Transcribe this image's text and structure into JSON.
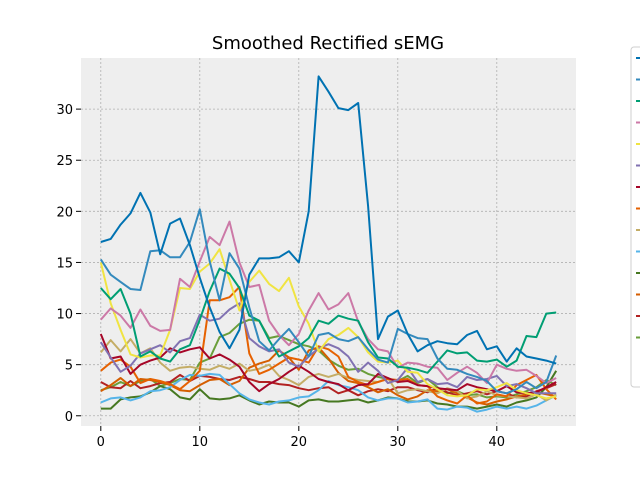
{
  "chart_data": {
    "type": "line",
    "title": "Smoothed Rectified sEMG",
    "xlabel": "",
    "ylabel": "",
    "xlim": [
      -2,
      48
    ],
    "ylim": [
      -1,
      35
    ],
    "xticks": [
      0,
      10,
      20,
      30,
      40
    ],
    "yticks": [
      0,
      5,
      10,
      15,
      20,
      25,
      30
    ],
    "grid": true,
    "legend_position": "right (clipped)",
    "series": [
      {
        "color": "#0072B2",
        "values": [
          17,
          17.3,
          18.7,
          19.8,
          21.8,
          19.9,
          15.8,
          18.8,
          19.3,
          16.7,
          13.5,
          10.6,
          8.2,
          6.6,
          8.4,
          13.8,
          15.4,
          15.4,
          15.5,
          16.1,
          15.0,
          20.0,
          33.2,
          31.7,
          30.1,
          29.9,
          30.6,
          20.5,
          7.5,
          9.7,
          10.3,
          8.0,
          6.3,
          6.9,
          7.3,
          7.1,
          7.0,
          7.9,
          8.3,
          6.5,
          6.8,
          5.3,
          6.6,
          5.8,
          5.6,
          5.4,
          5.1
        ]
      },
      {
        "color": "#348ABD",
        "values": [
          15.3,
          13.8,
          13.1,
          12.4,
          12.3,
          16.1,
          16.2,
          15.5,
          15.5,
          17.0,
          20.2,
          15.1,
          11.3,
          15.9,
          14.4,
          10.6,
          7.3,
          6.4,
          7.5,
          8.5,
          7.2,
          5.8,
          7.9,
          8.1,
          7.5,
          7.3,
          7.7,
          6.5,
          5.5,
          5.2,
          8.5,
          8.0,
          7.6,
          7.5,
          5.6,
          4.6,
          4.5,
          4.1,
          3.8,
          3.4,
          2.4,
          2.2,
          2.6,
          3.3,
          2.7,
          3.3,
          5.9
        ]
      },
      {
        "color": "#009E73",
        "values": [
          12.5,
          11.4,
          12.4,
          10.0,
          5.8,
          6.3,
          5.6,
          5.3,
          6.5,
          6.9,
          9.4,
          12.2,
          14.4,
          13.9,
          12.5,
          9.8,
          9.3,
          7.4,
          5.8,
          6.3,
          6.8,
          7.6,
          9.3,
          9.0,
          9.8,
          9.5,
          9.3,
          7.2,
          5.7,
          5.6,
          4.8,
          4.7,
          4.5,
          4.2,
          5.3,
          6.4,
          6.1,
          6.2,
          5.4,
          5.3,
          5.5,
          4.8,
          5.4,
          7.8,
          7.7,
          10.0,
          10.1
        ]
      },
      {
        "color": "#CC79A7",
        "values": [
          9.4,
          10.5,
          9.8,
          8.6,
          10.4,
          8.8,
          8.3,
          8.4,
          13.4,
          12.6,
          15.1,
          17.5,
          16.7,
          19.0,
          15.0,
          12.6,
          12.8,
          9.3,
          7.9,
          6.9,
          8.0,
          10.3,
          12.0,
          10.4,
          10.9,
          12.0,
          9.2,
          7.5,
          6.5,
          6.3,
          4.7,
          5.2,
          5.1,
          4.8,
          4.7,
          3.5,
          4.2,
          4.8,
          4.2,
          3.2,
          5.0,
          4.6,
          4.4,
          4.5,
          3.9,
          3.2,
          3.7
        ]
      },
      {
        "color": "#F0E442",
        "values": [
          15.0,
          11.0,
          8.4,
          6.0,
          5.7,
          5.9,
          5.9,
          8.4,
          12.5,
          12.4,
          14.1,
          14.9,
          16.3,
          13.3,
          10.3,
          13.1,
          14.2,
          12.9,
          12.2,
          13.5,
          10.7,
          9.0,
          6.3,
          7.5,
          7.9,
          8.6,
          7.7,
          6.2,
          5.3,
          5.2,
          5.4,
          4.3,
          4.2,
          3.1,
          2.6,
          2.0,
          1.9,
          2.0,
          2.6,
          2.5,
          2.8,
          3.2,
          2.5,
          2.2,
          2.0,
          1.7,
          1.9
        ]
      },
      {
        "color": "#8172B2",
        "values": [
          7.2,
          5.7,
          4.3,
          4.9,
          6.1,
          6.5,
          6.9,
          6.2,
          7.3,
          7.6,
          9.9,
          9.3,
          9.5,
          10.4,
          11.0,
          7.6,
          6.8,
          6.3,
          6.5,
          5.2,
          4.8,
          5.8,
          6.6,
          7.0,
          6.6,
          5.8,
          4.3,
          5.2,
          4.4,
          3.2,
          3.5,
          4.7,
          3.3,
          3.6,
          3.1,
          3.2,
          2.8,
          3.8,
          3.5,
          3.6,
          3.9,
          2.9,
          3.1,
          2.7,
          2.2,
          2.2,
          2.2
        ]
      },
      {
        "color": "#A60628",
        "values": [
          8.0,
          5.6,
          5.8,
          4.1,
          5.0,
          5.4,
          5.7,
          6.6,
          6.2,
          6.5,
          6.7,
          5.6,
          6.0,
          5.5,
          4.8,
          3.3,
          2.4,
          3.1,
          3.6,
          4.3,
          4.9,
          4.3,
          3.6,
          3.3,
          3.1,
          2.5,
          3.0,
          3.1,
          4.1,
          3.7,
          3.3,
          3.4,
          3.0,
          2.9,
          2.7,
          2.6,
          2.5,
          3.1,
          2.8,
          2.6,
          2.4,
          2.9,
          2.3,
          2.2,
          2.3,
          2.8,
          3.3
        ]
      },
      {
        "color": "#E66100",
        "values": [
          4.4,
          5.2,
          5.5,
          4.8,
          3.2,
          3.6,
          3.4,
          3.1,
          2.6,
          3.4,
          4.4,
          11.3,
          11.3,
          11.6,
          12.6,
          6.1,
          4.1,
          4.5,
          5.1,
          5.7,
          5.5,
          5.2,
          6.8,
          6.5,
          5.8,
          3.8,
          3.3,
          3.0,
          3.3,
          3.6,
          3.5,
          3.6,
          3.0,
          2.9,
          1.9,
          1.5,
          1.2,
          2.0,
          1.2,
          1.4,
          2.1,
          1.9,
          3.0,
          3.5,
          4.0,
          2.6,
          1.6
        ]
      },
      {
        "color": "#C4AD66",
        "values": [
          6.2,
          7.4,
          6.3,
          7.5,
          6.1,
          6.6,
          5.2,
          4.4,
          4.7,
          4.8,
          4.6,
          4.5,
          4.9,
          4.6,
          5.1,
          4.4,
          4.6,
          5.0,
          3.9,
          3.5,
          3.0,
          3.8,
          4.1,
          3.8,
          4.1,
          3.7,
          3.5,
          3.4,
          3.3,
          3.7,
          2.2,
          2.5,
          2.6,
          2.4,
          2.2,
          2.7,
          2.4,
          1.7,
          1.9,
          2.4,
          2.0,
          1.9,
          1.8,
          1.7,
          2.1,
          1.5,
          2.1
        ]
      },
      {
        "color": "#56B4E9",
        "values": [
          1.3,
          1.7,
          1.8,
          1.5,
          1.8,
          2.4,
          2.5,
          2.8,
          3.5,
          4.0,
          3.9,
          4.1,
          4.0,
          3.1,
          2.2,
          1.6,
          1.3,
          1.1,
          1.4,
          1.5,
          1.8,
          1.9,
          2.5,
          3.4,
          3.0,
          2.8,
          2.5,
          1.8,
          1.5,
          1.7,
          1.7,
          1.3,
          1.4,
          1.6,
          0.7,
          0.6,
          0.9,
          0.8,
          0.4,
          0.6,
          0.9,
          0.7,
          0.9,
          0.7,
          1.0,
          1.5,
          2.0
        ]
      },
      {
        "color": "#467821",
        "values": [
          0.7,
          0.7,
          1.6,
          1.8,
          1.9,
          2.3,
          2.9,
          2.6,
          1.8,
          1.6,
          2.6,
          1.7,
          1.6,
          1.7,
          2.0,
          1.5,
          1.1,
          1.4,
          1.3,
          1.3,
          0.9,
          1.5,
          1.6,
          1.4,
          1.4,
          1.5,
          1.6,
          1.3,
          1.5,
          1.8,
          1.7,
          1.4,
          1.4,
          1.5,
          1.2,
          1.1,
          0.9,
          0.9,
          0.7,
          0.9,
          1.1,
          0.9,
          1.3,
          1.5,
          1.8,
          2.8,
          4.4
        ]
      },
      {
        "color": "#D55E00",
        "values": [
          2.4,
          3.0,
          3.7,
          2.9,
          3.6,
          3.5,
          3.3,
          3.0,
          2.5,
          2.4,
          3.0,
          3.5,
          3.6,
          3.0,
          3.4,
          4.7,
          5.1,
          5.4,
          6.4,
          5.7,
          4.5,
          6.4,
          6.7,
          5.6,
          4.2,
          3.4,
          3.2,
          2.8,
          2.3,
          2.6,
          2.0,
          1.6,
          1.9,
          2.5,
          2.4,
          2.6,
          2.2,
          1.8,
          1.3,
          1.1,
          1.4,
          1.6,
          1.9,
          2.1,
          2.3,
          2.1,
          1.9
        ]
      },
      {
        "color": "#B22222",
        "values": [
          3.3,
          2.8,
          2.7,
          3.4,
          2.7,
          2.9,
          3.2,
          3.3,
          4.0,
          3.4,
          3.9,
          3.8,
          3.6,
          3.5,
          3.8,
          3.6,
          3.3,
          3.3,
          3.1,
          3.0,
          2.7,
          2.5,
          2.7,
          2.8,
          2.2,
          2.5,
          2.0,
          2.4,
          2.6,
          2.4,
          2.8,
          2.8,
          2.5,
          2.3,
          2.7,
          2.3,
          2.0,
          2.2,
          2.4,
          2.1,
          2.4,
          2.2,
          1.8,
          1.9,
          2.4,
          2.7,
          3.1
        ]
      },
      {
        "color": "#6A9E3A",
        "values": [
          2.5,
          2.8,
          3.3,
          2.9,
          3.4,
          3.6,
          2.9,
          3.2,
          3.6,
          3.5,
          5.2,
          5.6,
          7.7,
          8.1,
          9.0,
          9.4,
          9.3,
          7.6,
          7.8,
          7.4,
          7.0,
          6.8,
          6.4,
          5.5,
          4.9,
          4.5,
          4.6,
          4.1,
          3.8,
          3.6,
          3.4,
          3.9,
          3.2,
          3.6,
          2.8,
          2.2,
          2.4,
          2.0,
          2.1,
          1.8,
          1.9,
          1.8,
          2.1,
          2.4,
          2.8,
          3.5,
          3.0
        ]
      }
    ]
  }
}
